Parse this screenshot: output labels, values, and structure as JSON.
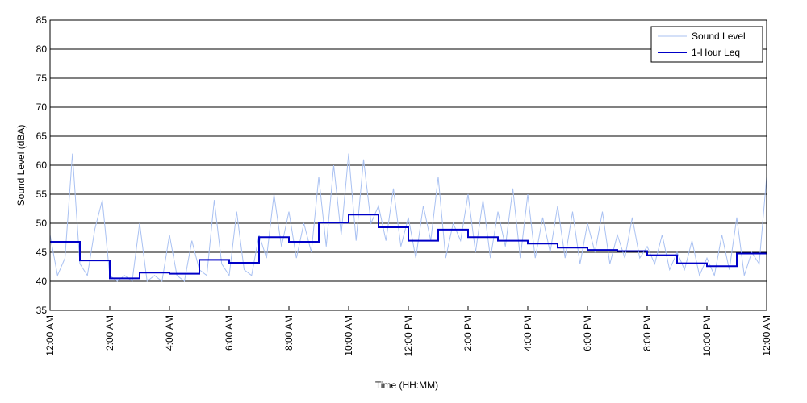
{
  "chart_data": {
    "type": "line",
    "ylabel": "Sound Level (dBA)",
    "xlabel": "Time (HH:MM)",
    "xlim": [
      0,
      24
    ],
    "ylim": [
      35,
      85
    ],
    "yticks": [
      35,
      40,
      45,
      50,
      55,
      60,
      65,
      70,
      75,
      80,
      85
    ],
    "xticks": [
      {
        "value": 0,
        "label": "12:00 AM"
      },
      {
        "value": 2,
        "label": "2:00 AM"
      },
      {
        "value": 4,
        "label": "4:00 AM"
      },
      {
        "value": 6,
        "label": "6:00 AM"
      },
      {
        "value": 8,
        "label": "8:00 AM"
      },
      {
        "value": 10,
        "label": "10:00 AM"
      },
      {
        "value": 12,
        "label": "12:00 PM"
      },
      {
        "value": 14,
        "label": "2:00 PM"
      },
      {
        "value": 16,
        "label": "4:00 PM"
      },
      {
        "value": 18,
        "label": "6:00 PM"
      },
      {
        "value": 20,
        "label": "8:00 PM"
      },
      {
        "value": 22,
        "label": "10:00 PM"
      },
      {
        "value": 24,
        "label": "12:00 AM"
      }
    ],
    "grid": true,
    "legend": "upper right",
    "series": [
      {
        "name": "Sound Level",
        "color": "#a9c1f2",
        "style": "line",
        "x": [
          0,
          0.25,
          0.5,
          0.75,
          1,
          1.25,
          1.5,
          1.75,
          2,
          2.25,
          2.5,
          2.75,
          3,
          3.25,
          3.5,
          3.75,
          4,
          4.25,
          4.5,
          4.75,
          5,
          5.25,
          5.5,
          5.75,
          6,
          6.25,
          6.5,
          6.75,
          7,
          7.25,
          7.5,
          7.75,
          8,
          8.25,
          8.5,
          8.75,
          9,
          9.25,
          9.5,
          9.75,
          10,
          10.25,
          10.5,
          10.75,
          11,
          11.25,
          11.5,
          11.75,
          12,
          12.25,
          12.5,
          12.75,
          13,
          13.25,
          13.5,
          13.75,
          14,
          14.25,
          14.5,
          14.75,
          15,
          15.25,
          15.5,
          15.75,
          16,
          16.25,
          16.5,
          16.75,
          17,
          17.25,
          17.5,
          17.75,
          18,
          18.25,
          18.5,
          18.75,
          19,
          19.25,
          19.5,
          19.75,
          20,
          20.25,
          20.5,
          20.75,
          21,
          21.25,
          21.5,
          21.75,
          22,
          22.25,
          22.5,
          22.75,
          23,
          23.25,
          23.5,
          23.75,
          24
        ],
        "values": [
          48,
          41,
          44,
          62,
          43,
          41,
          49,
          54,
          41,
          40,
          41,
          40,
          50,
          40,
          41,
          40,
          48,
          41,
          40,
          47,
          42,
          41,
          54,
          43,
          41,
          52,
          42,
          41,
          48,
          44,
          55,
          46,
          52,
          44,
          50,
          45,
          58,
          46,
          60,
          48,
          62,
          47,
          61,
          50,
          53,
          47,
          56,
          46,
          51,
          44,
          53,
          47,
          58,
          44,
          50,
          47,
          55,
          45,
          54,
          44,
          52,
          46,
          56,
          44,
          55,
          44,
          51,
          45,
          53,
          44,
          52,
          43,
          50,
          45,
          52,
          43,
          48,
          44,
          51,
          44,
          46,
          43,
          48,
          42,
          45,
          42,
          47,
          41,
          44,
          41,
          48,
          42,
          51,
          41,
          45,
          43,
          58
        ]
      },
      {
        "name": "1-Hour Leq",
        "color": "#0000c8",
        "style": "step",
        "x": [
          0,
          1,
          2,
          3,
          4,
          5,
          6,
          7,
          8,
          9,
          10,
          11,
          12,
          13,
          14,
          15,
          16,
          17,
          18,
          19,
          20,
          21,
          22,
          23
        ],
        "values": [
          46.8,
          43.6,
          40.5,
          41.5,
          41.3,
          43.7,
          43.2,
          47.6,
          46.8,
          50.1,
          51.5,
          49.3,
          47.0,
          48.9,
          47.6,
          47.0,
          46.5,
          45.8,
          45.4,
          45.2,
          44.5,
          43.1,
          42.6,
          44.8
        ]
      }
    ]
  }
}
